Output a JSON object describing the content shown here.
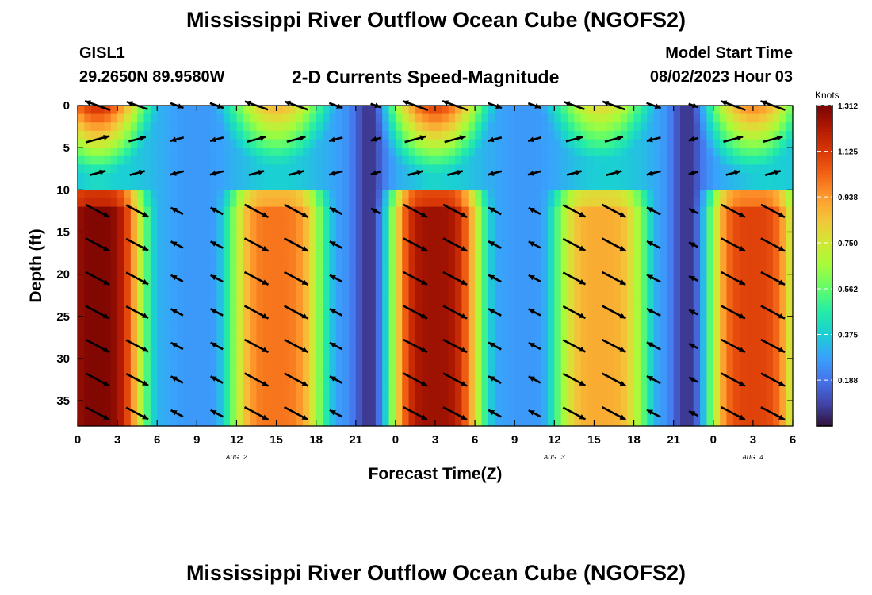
{
  "page": {
    "title_top": "Mississippi River Outflow Ocean Cube (NGOFS2)",
    "title_bottom": "Mississippi River Outflow Ocean Cube (NGOFS2)",
    "station_id": "GISL1",
    "station_coords": "29.2650N  89.9580W",
    "subtitle": "2-D Currents Speed-Magnitude",
    "start_label": "Model Start Time",
    "start_value": "08/02/2023 Hour 03"
  },
  "chart_data": {
    "type": "heatmap",
    "title": "2-D Currents Speed-Magnitude",
    "xlabel": "Forecast Time(Z)",
    "ylabel": "Depth (ft)",
    "x_range_hours": [
      0,
      54
    ],
    "y_range_ft": [
      0,
      38
    ],
    "x_ticks": [
      {
        "hour": 0,
        "label": "0"
      },
      {
        "hour": 3,
        "label": "3"
      },
      {
        "hour": 6,
        "label": "6"
      },
      {
        "hour": 9,
        "label": "9"
      },
      {
        "hour": 12,
        "label": "12"
      },
      {
        "hour": 15,
        "label": "15"
      },
      {
        "hour": 18,
        "label": "18"
      },
      {
        "hour": 21,
        "label": "21"
      },
      {
        "hour": 24,
        "label": "0"
      },
      {
        "hour": 27,
        "label": "3"
      },
      {
        "hour": 30,
        "label": "6"
      },
      {
        "hour": 33,
        "label": "9"
      },
      {
        "hour": 36,
        "label": "12"
      },
      {
        "hour": 39,
        "label": "15"
      },
      {
        "hour": 42,
        "label": "18"
      },
      {
        "hour": 45,
        "label": "21"
      },
      {
        "hour": 48,
        "label": "0"
      },
      {
        "hour": 51,
        "label": "3"
      },
      {
        "hour": 54,
        "label": "6"
      }
    ],
    "date_labels": [
      {
        "hour": 12,
        "label": "AUG 2"
      },
      {
        "hour": 36,
        "label": "AUG 3"
      },
      {
        "hour": 51,
        "label": "AUG 4"
      }
    ],
    "y_ticks": [
      0,
      5,
      10,
      15,
      20,
      25,
      30,
      35
    ],
    "colorbar": {
      "unit": "Knots",
      "min": 0.0,
      "max": 1.312,
      "ticks": [
        "1.312",
        "1.125",
        "0.938",
        "0.750",
        "0.562",
        "0.375",
        "0.188"
      ],
      "colormap": [
        "#30123b",
        "#4145ab",
        "#4675ed",
        "#39a2fc",
        "#1bcfd4",
        "#24eca6",
        "#61fc6c",
        "#a4fc3b",
        "#d1e834",
        "#f3c63a",
        "#fe9b2d",
        "#f36315",
        "#d93806",
        "#b11901",
        "#7a0403"
      ]
    },
    "profile_peaks": [
      {
        "center_hour": 1.5,
        "half_width_hours": 3.4,
        "peak_knots": 1.3
      },
      {
        "center_hour": 15.0,
        "half_width_hours": 3.6,
        "peak_knots": 1.0
      },
      {
        "center_hour": 27.0,
        "half_width_hours": 3.4,
        "peak_knots": 1.25
      },
      {
        "center_hour": 39.5,
        "half_width_hours": 3.6,
        "peak_knots": 0.9
      },
      {
        "center_hour": 51.0,
        "half_width_hours": 3.4,
        "peak_knots": 1.1
      }
    ],
    "vector_columns_hours": [
      1.5,
      4.5,
      7.5,
      10.5,
      13.5,
      16.5,
      19.5,
      22.5,
      25.5,
      28.5,
      31.5,
      34.5,
      37.5,
      40.5,
      43.5,
      46.5,
      49.5,
      52.5
    ],
    "vector_rows_ft": [
      0,
      4,
      8,
      12.5,
      16.5,
      20.5,
      24.5,
      28.5,
      32.5,
      36.5
    ]
  }
}
